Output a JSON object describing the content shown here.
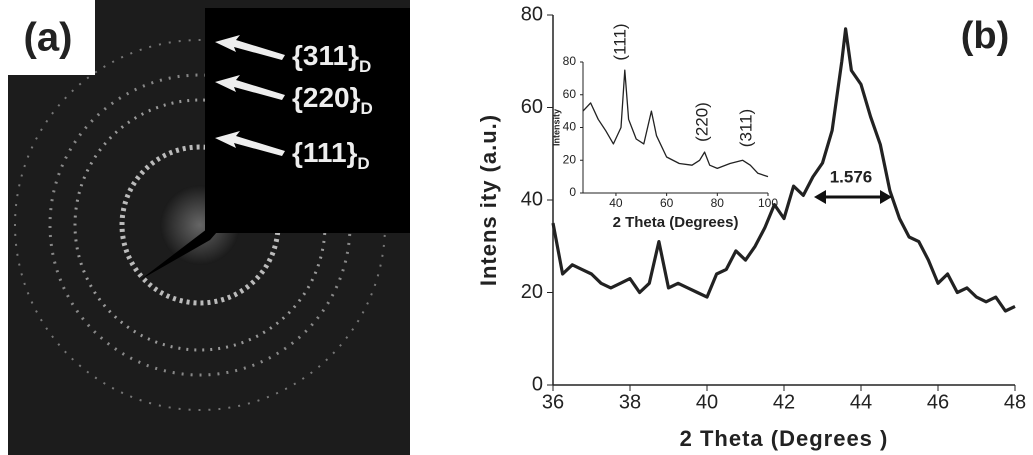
{
  "panel_a": {
    "label": "(a)",
    "annotations": [
      {
        "text": "{311}",
        "subscript": "D"
      },
      {
        "text": "{220}",
        "subscript": "D"
      },
      {
        "text": "{111}",
        "subscript": "D"
      }
    ]
  },
  "chart_data": [
    {
      "type": "line",
      "panel_label": "(b)",
      "annotation": "1.576",
      "x_label": "2 Theta (Degrees )",
      "y_label": "Intens ity (a.u.)",
      "xlim": [
        36,
        48
      ],
      "xticks": [
        36,
        38,
        40,
        42,
        44,
        46,
        48
      ],
      "ylim": [
        0,
        80
      ],
      "yticks": [
        0,
        20,
        40,
        60,
        80
      ],
      "color": "#222222",
      "x": [
        36,
        36.25,
        36.5,
        36.75,
        37,
        37.25,
        37.5,
        37.75,
        38,
        38.25,
        38.5,
        38.75,
        39,
        39.25,
        39.5,
        39.75,
        40,
        40.25,
        40.5,
        40.75,
        41,
        41.25,
        41.5,
        41.75,
        42,
        42.25,
        42.5,
        42.75,
        43,
        43.25,
        43.5,
        43.6,
        43.75,
        44,
        44.25,
        44.5,
        44.75,
        45,
        45.25,
        45.5,
        45.75,
        46,
        46.25,
        46.5,
        46.75,
        47,
        47.25,
        47.5,
        47.75,
        48
      ],
      "values": [
        35,
        24,
        26,
        25,
        24,
        22,
        21,
        22,
        23,
        20,
        22,
        31,
        21,
        22,
        21,
        20,
        19,
        24,
        25,
        29,
        27,
        30,
        34,
        39,
        36,
        43,
        41,
        45,
        48,
        55,
        70,
        77,
        68,
        65,
        58,
        52,
        42,
        36,
        32,
        31,
        27,
        22,
        24,
        20,
        21,
        19,
        18,
        19,
        16,
        17
      ]
    },
    {
      "type": "line",
      "x_label": "2 Theta (Degrees)",
      "y_label": "Intensity",
      "annotations": [
        "(111)",
        "(220)",
        "(311)"
      ],
      "xlim": [
        27,
        100
      ],
      "xticks": [
        40,
        60,
        80,
        100
      ],
      "ylim": [
        0,
        80
      ],
      "yticks": [
        0,
        20,
        40,
        60,
        80
      ],
      "color": "#222222",
      "x": [
        27,
        30,
        33,
        36,
        39,
        42,
        43.5,
        45,
        48,
        51,
        54,
        56,
        60,
        65,
        70,
        73,
        75,
        77,
        80,
        85,
        90,
        93,
        96,
        100
      ],
      "values": [
        50,
        55,
        45,
        38,
        30,
        40,
        75,
        45,
        33,
        30,
        50,
        35,
        22,
        18,
        17,
        20,
        25,
        17,
        15,
        18,
        20,
        17,
        12,
        10
      ]
    }
  ]
}
